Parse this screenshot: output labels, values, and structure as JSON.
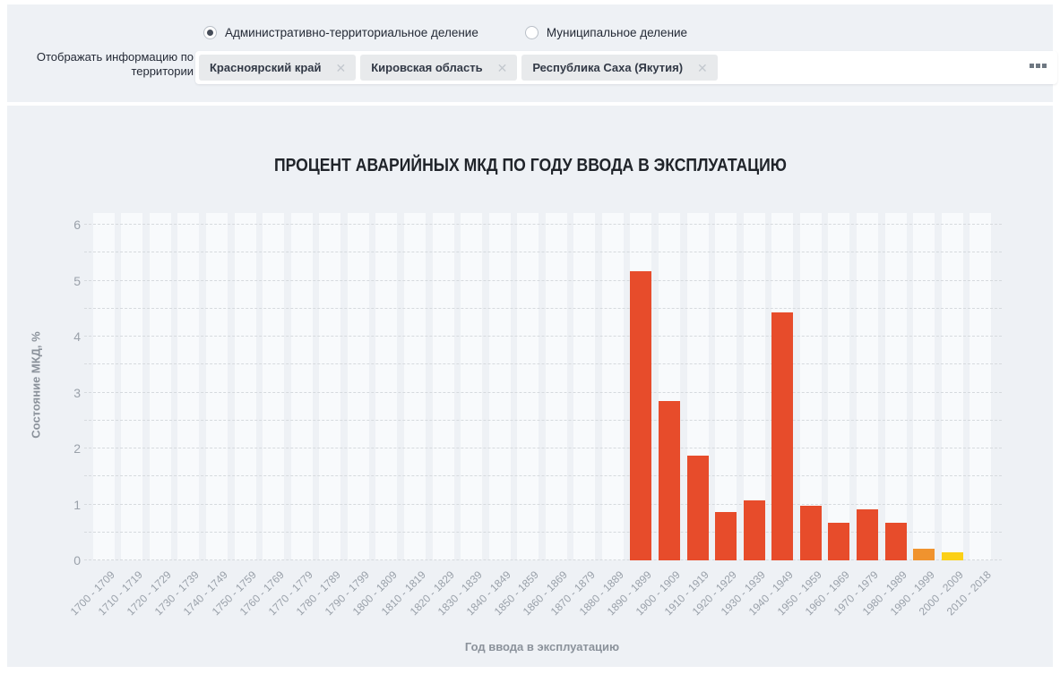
{
  "filters": {
    "division_options": [
      {
        "label": "Административно-территориальное деление",
        "selected": true
      },
      {
        "label": "Муниципальное деление",
        "selected": false
      }
    ],
    "territory_label_line1": "Отображать информацию по",
    "territory_label_line2": "территории",
    "selected_territories": [
      "Красноярский край",
      "Кировская область",
      "Республика Саха (Якутия)"
    ],
    "icons": {
      "remove_chip": "✕",
      "more_options": "three-squares"
    }
  },
  "chart_data": {
    "type": "bar",
    "title": "ПРОЦЕНТ АВАРИЙНЫХ МКД ПО ГОДУ ВВОДА В ЭКСПЛУАТАЦИЮ",
    "xlabel": "Год ввода в эксплуатацию",
    "ylabel": "Состояние МКД, %",
    "ylim": [
      0,
      6
    ],
    "yticks": [
      0,
      1,
      2,
      3,
      4,
      5,
      6
    ],
    "grid_step": 0.5,
    "grid": "horizontal-dashed",
    "legend": "none",
    "categories": [
      "1700 - 1709",
      "1710 - 1719",
      "1720 - 1729",
      "1730 - 1739",
      "1740 - 1749",
      "1750 - 1759",
      "1760 - 1769",
      "1770 - 1779",
      "1780 - 1789",
      "1790 - 1799",
      "1800 - 1809",
      "1810 - 1819",
      "1820 - 1829",
      "1830 - 1839",
      "1840 - 1849",
      "1850 - 1859",
      "1860 - 1869",
      "1870 - 1879",
      "1880 - 1889",
      "1890 - 1899",
      "1900 - 1909",
      "1910 - 1919",
      "1920 - 1929",
      "1930 - 1939",
      "1940 - 1949",
      "1950 - 1959",
      "1960 - 1969",
      "1970 - 1979",
      "1980 - 1989",
      "1990 - 1999",
      "2000 - 2009",
      "2010 - 2018"
    ],
    "values": [
      0,
      0,
      0,
      0,
      0,
      0,
      0,
      0,
      0,
      0,
      0,
      0,
      0,
      0,
      0,
      0,
      0,
      0,
      0,
      5.17,
      2.85,
      1.88,
      0.86,
      1.08,
      4.43,
      0.97,
      0.68,
      0.91,
      0.68,
      0.21,
      0.14,
      0
    ],
    "colors": {
      "default_bar": "#e74c2b",
      "overrides": {
        "1990 - 1999": "#f0932e",
        "2000 - 2009": "#fbd016"
      },
      "plot_stripe": "#f8fafc",
      "card_background": "#eef1f5",
      "gridline": "#d6dade",
      "axis_text": "#9aa1aa"
    }
  }
}
